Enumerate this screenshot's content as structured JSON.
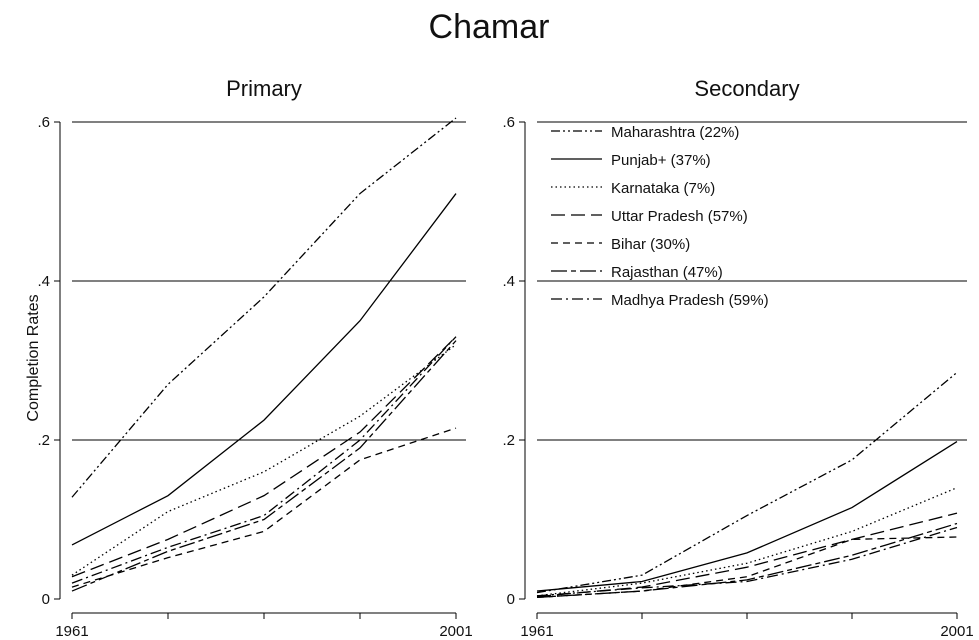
{
  "chart_data": {
    "type": "line",
    "title": "Chamar",
    "ylabel": "Completion Rates",
    "ylim": [
      0,
      0.6
    ],
    "yticks": [
      0,
      0.2,
      0.4,
      0.6
    ],
    "ytick_labels": [
      "0",
      ".2",
      ".4",
      ".6"
    ],
    "xlim": [
      1961,
      2001
    ],
    "xticks": [
      1961,
      1971,
      1981,
      1991,
      2001
    ],
    "xtick_labels": [
      "1961",
      "",
      "",
      "",
      "2001"
    ],
    "grid": "horizontal",
    "legend_position": "top-left of Secondary panel",
    "series_styles": {
      "Maharashtra (22%)": "dash-dot-dot",
      "Punjab+ (37%)": "solid",
      "Karnataka (7%)": "dotted",
      "Uttar Pradesh (57%)": "long-dash",
      "Bihar (30%)": "dashed",
      "Rajasthan (47%)": "long-dash-short",
      "Madhya Pradesh (59%)": "dash-dot"
    },
    "panels": [
      {
        "title": "Primary",
        "x": [
          1961,
          1971,
          1981,
          1991,
          2001
        ],
        "series": [
          {
            "name": "Maharashtra (22%)",
            "values": [
              0.128,
              0.27,
              0.38,
              0.51,
              0.605
            ]
          },
          {
            "name": "Punjab+ (37%)",
            "values": [
              0.068,
              0.13,
              0.225,
              0.35,
              0.51
            ]
          },
          {
            "name": "Karnataka (7%)",
            "values": [
              0.03,
              0.11,
              0.16,
              0.23,
              0.32
            ]
          },
          {
            "name": "Uttar Pradesh (57%)",
            "values": [
              0.028,
              0.075,
              0.13,
              0.21,
              0.33
            ]
          },
          {
            "name": "Bihar (30%)",
            "values": [
              0.015,
              0.052,
              0.085,
              0.175,
              0.215
            ]
          },
          {
            "name": "Rajasthan (47%)",
            "values": [
              0.01,
              0.06,
              0.1,
              0.19,
              0.325
            ]
          },
          {
            "name": "Madhya Pradesh (59%)",
            "values": [
              0.02,
              0.065,
              0.105,
              0.2,
              0.33
            ]
          }
        ]
      },
      {
        "title": "Secondary",
        "x": [
          1961,
          1971,
          1981,
          1991,
          2001
        ],
        "series": [
          {
            "name": "Maharashtra (22%)",
            "values": [
              0.008,
              0.03,
              0.105,
              0.175,
              0.285
            ]
          },
          {
            "name": "Punjab+ (37%)",
            "values": [
              0.01,
              0.022,
              0.058,
              0.115,
              0.198
            ]
          },
          {
            "name": "Karnataka (7%)",
            "values": [
              0.004,
              0.02,
              0.045,
              0.085,
              0.14
            ]
          },
          {
            "name": "Uttar Pradesh (57%)",
            "values": [
              0.003,
              0.015,
              0.04,
              0.075,
              0.108
            ]
          },
          {
            "name": "Bihar (30%)",
            "values": [
              0.002,
              0.01,
              0.028,
              0.075,
              0.078
            ]
          },
          {
            "name": "Rajasthan (47%)",
            "values": [
              0.002,
              0.01,
              0.024,
              0.055,
              0.095
            ]
          },
          {
            "name": "Madhya Pradesh (59%)",
            "values": [
              0.004,
              0.014,
              0.022,
              0.05,
              0.09
            ]
          }
        ]
      }
    ]
  }
}
